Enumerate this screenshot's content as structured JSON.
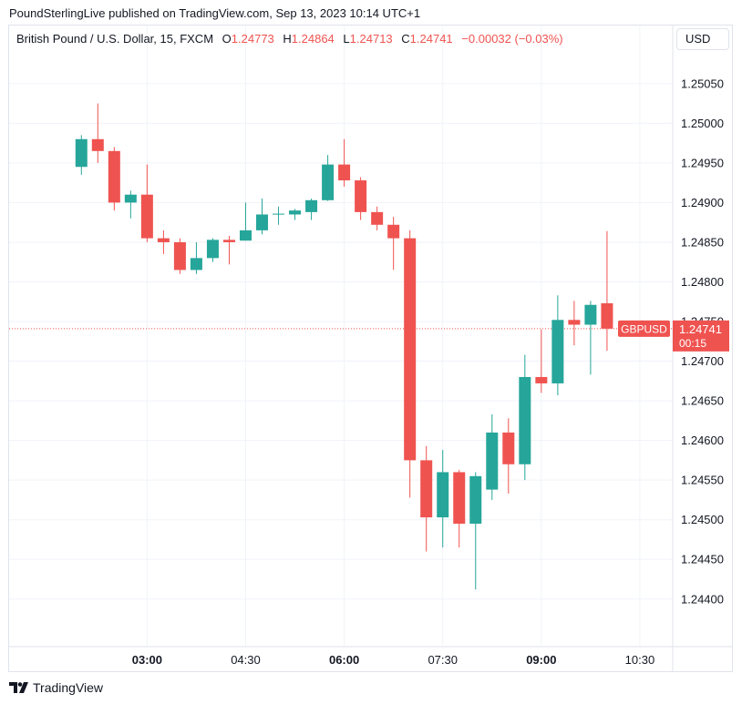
{
  "header": {
    "published": "PoundSterlingLive published on TradingView.com, Sep 13, 2023 10:14 UTC+1"
  },
  "legend": {
    "symbol": "British Pound / U.S. Dollar, 15, FXCM",
    "o_label": "O",
    "o_value": "1.24773",
    "h_label": "H",
    "h_value": "1.24864",
    "l_label": "L",
    "l_value": "1.24713",
    "c_label": "C",
    "c_value": "1.24741",
    "change": "−0.00032 (−0.03%)"
  },
  "currency_button": "USD",
  "price_label": {
    "name": "GBPUSD",
    "value": "1.24741",
    "countdown": "00:15"
  },
  "footer": {
    "brand": "TradingView"
  },
  "colors": {
    "up": "#26a69a",
    "down": "#ef5350",
    "grid": "#f0f3fa",
    "axis_text": "#131722"
  },
  "chart_data": {
    "type": "candlestick",
    "ylim": [
      1.2434,
      1.2509
    ],
    "ytick_values": [
      1.244,
      1.2445,
      1.245,
      1.2455,
      1.246,
      1.2465,
      1.247,
      1.2475,
      1.248,
      1.2485,
      1.249,
      1.2495,
      1.25,
      1.2505
    ],
    "ytick_labels": [
      "1.24400",
      "1.24450",
      "1.24500",
      "1.24550",
      "1.24600",
      "1.24650",
      "1.24700",
      "1.24750",
      "1.24800",
      "1.24850",
      "1.24900",
      "1.24950",
      "1.25000",
      "1.25050"
    ],
    "xlim": [
      0.9,
      11.0
    ],
    "x_ticks": [
      {
        "t": 3.0,
        "label": "03:00",
        "bold": true
      },
      {
        "t": 4.5,
        "label": "04:30",
        "bold": false
      },
      {
        "t": 6.0,
        "label": "06:00",
        "bold": true
      },
      {
        "t": 7.5,
        "label": "07:30",
        "bold": false
      },
      {
        "t": 9.0,
        "label": "09:00",
        "bold": true
      },
      {
        "t": 10.5,
        "label": "10:30",
        "bold": false
      }
    ],
    "current_price": 1.24741,
    "candles": [
      {
        "t": 2.0,
        "o": 1.24945,
        "h": 1.24985,
        "l": 1.24935,
        "c": 1.2498
      },
      {
        "t": 2.25,
        "o": 1.2498,
        "h": 1.25025,
        "l": 1.2495,
        "c": 1.24965
      },
      {
        "t": 2.5,
        "o": 1.24965,
        "h": 1.2497,
        "l": 1.2489,
        "c": 1.249
      },
      {
        "t": 2.75,
        "o": 1.249,
        "h": 1.24915,
        "l": 1.2488,
        "c": 1.2491
      },
      {
        "t": 3.0,
        "o": 1.2491,
        "h": 1.24948,
        "l": 1.2485,
        "c": 1.24855
      },
      {
        "t": 3.25,
        "o": 1.24855,
        "h": 1.24865,
        "l": 1.24835,
        "c": 1.2485
      },
      {
        "t": 3.5,
        "o": 1.2485,
        "h": 1.24855,
        "l": 1.2481,
        "c": 1.24815
      },
      {
        "t": 3.75,
        "o": 1.24815,
        "h": 1.2485,
        "l": 1.2481,
        "c": 1.2483
      },
      {
        "t": 4.0,
        "o": 1.2483,
        "h": 1.24855,
        "l": 1.24825,
        "c": 1.24853
      },
      {
        "t": 4.25,
        "o": 1.24853,
        "h": 1.24858,
        "l": 1.24822,
        "c": 1.2485
      },
      {
        "t": 4.5,
        "o": 1.24852,
        "h": 1.249,
        "l": 1.24852,
        "c": 1.24865
      },
      {
        "t": 4.75,
        "o": 1.24865,
        "h": 1.24905,
        "l": 1.2486,
        "c": 1.24885
      },
      {
        "t": 5.0,
        "o": 1.24885,
        "h": 1.24895,
        "l": 1.24872,
        "c": 1.24886
      },
      {
        "t": 5.25,
        "o": 1.24885,
        "h": 1.24892,
        "l": 1.24878,
        "c": 1.2489
      },
      {
        "t": 5.5,
        "o": 1.24888,
        "h": 1.24905,
        "l": 1.24878,
        "c": 1.24903
      },
      {
        "t": 5.75,
        "o": 1.24903,
        "h": 1.2496,
        "l": 1.24902,
        "c": 1.24948
      },
      {
        "t": 6.0,
        "o": 1.24948,
        "h": 1.2498,
        "l": 1.2492,
        "c": 1.24928
      },
      {
        "t": 6.25,
        "o": 1.24928,
        "h": 1.24932,
        "l": 1.24878,
        "c": 1.24888
      },
      {
        "t": 6.5,
        "o": 1.24888,
        "h": 1.24895,
        "l": 1.24865,
        "c": 1.24872
      },
      {
        "t": 6.75,
        "o": 1.24872,
        "h": 1.24882,
        "l": 1.24815,
        "c": 1.24855
      },
      {
        "t": 7.0,
        "o": 1.24855,
        "h": 1.24865,
        "l": 1.24528,
        "c": 1.24575
      },
      {
        "t": 7.25,
        "o": 1.24575,
        "h": 1.24593,
        "l": 1.2446,
        "c": 1.24503
      },
      {
        "t": 7.5,
        "o": 1.24503,
        "h": 1.24588,
        "l": 1.24465,
        "c": 1.2456
      },
      {
        "t": 7.75,
        "o": 1.2456,
        "h": 1.24563,
        "l": 1.24465,
        "c": 1.24495
      },
      {
        "t": 8.0,
        "o": 1.24495,
        "h": 1.2456,
        "l": 1.24412,
        "c": 1.24555
      },
      {
        "t": 8.25,
        "o": 1.24538,
        "h": 1.24633,
        "l": 1.24525,
        "c": 1.2461
      },
      {
        "t": 8.5,
        "o": 1.2461,
        "h": 1.24628,
        "l": 1.24533,
        "c": 1.2457
      },
      {
        "t": 8.75,
        "o": 1.2457,
        "h": 1.24708,
        "l": 1.2455,
        "c": 1.2468
      },
      {
        "t": 9.0,
        "o": 1.2468,
        "h": 1.2474,
        "l": 1.2466,
        "c": 1.24672
      },
      {
        "t": 9.25,
        "o": 1.24672,
        "h": 1.24783,
        "l": 1.24657,
        "c": 1.24752
      },
      {
        "t": 9.5,
        "o": 1.24752,
        "h": 1.24776,
        "l": 1.2472,
        "c": 1.24746
      },
      {
        "t": 9.75,
        "o": 1.24746,
        "h": 1.24776,
        "l": 1.24683,
        "c": 1.24771
      },
      {
        "t": 10.0,
        "o": 1.24773,
        "h": 1.24864,
        "l": 1.24713,
        "c": 1.24741
      }
    ]
  }
}
